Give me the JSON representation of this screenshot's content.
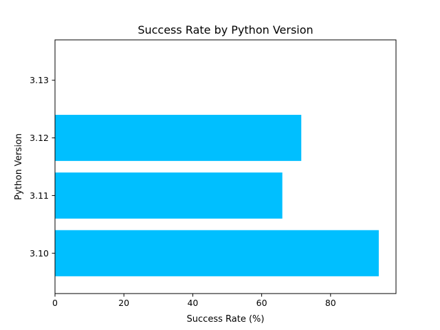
{
  "chart_data": {
    "type": "bar",
    "orientation": "horizontal",
    "title": "Success Rate by Python Version",
    "xlabel": "Success Rate (%)",
    "ylabel": "Python Version",
    "categories": [
      "3.10",
      "3.11",
      "3.12",
      "3.13"
    ],
    "values": [
      94,
      66,
      71.5,
      0
    ],
    "xlim": [
      0,
      99
    ],
    "xticks": [
      0,
      20,
      40,
      60,
      80
    ],
    "grid": false,
    "bar_color": "#00bfff"
  }
}
